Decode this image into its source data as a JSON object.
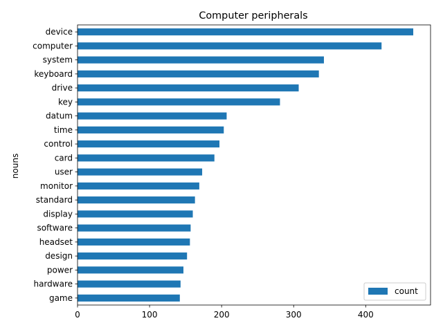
{
  "chart_data": {
    "type": "bar",
    "orientation": "horizontal",
    "title": "Computer peripherals",
    "xlabel": "",
    "ylabel": "nouns",
    "xlim": [
      0,
      490
    ],
    "xticks": [
      0,
      100,
      200,
      300,
      400
    ],
    "grid": false,
    "legend_position": "lower-right",
    "categories": [
      "device",
      "computer",
      "system",
      "keyboard",
      "drive",
      "key",
      "datum",
      "time",
      "control",
      "card",
      "user",
      "monitor",
      "standard",
      "display",
      "software",
      "headset",
      "design",
      "power",
      "hardware",
      "game"
    ],
    "series": [
      {
        "name": "count",
        "color": "#1f77b4",
        "values": [
          466,
          422,
          342,
          335,
          307,
          281,
          207,
          203,
          197,
          190,
          173,
          169,
          163,
          160,
          157,
          156,
          152,
          147,
          143,
          142
        ]
      }
    ]
  }
}
